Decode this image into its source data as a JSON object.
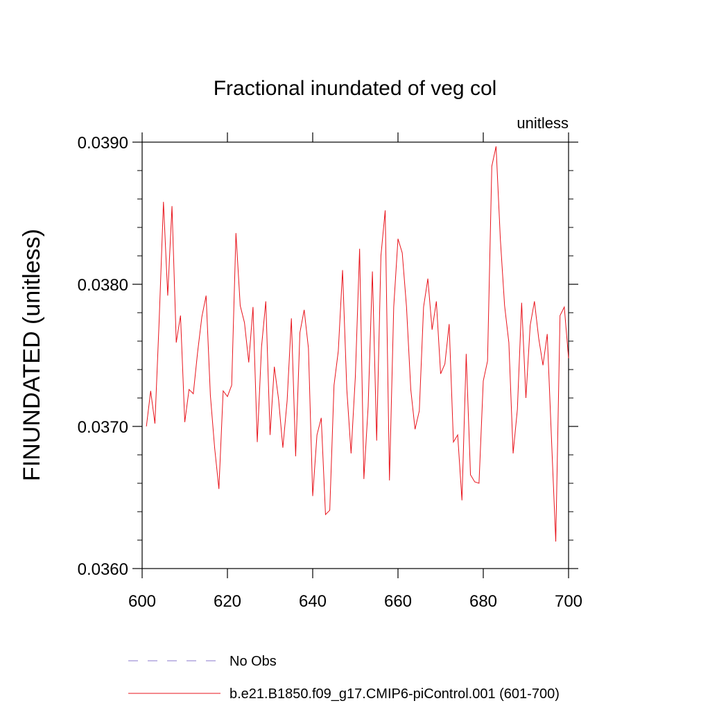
{
  "chart_data": {
    "type": "line",
    "title": "Fractional inundated of veg col",
    "units_label": "unitless",
    "xlabel": "",
    "ylabel": "FINUNDATED  (unitless)",
    "xlim": [
      600,
      700
    ],
    "ylim": [
      0.036,
      0.039
    ],
    "x_ticks": [
      600,
      620,
      640,
      660,
      680,
      700
    ],
    "x_tick_labels": [
      "600",
      "620",
      "640",
      "660",
      "680",
      "700"
    ],
    "y_ticks": [
      0.036,
      0.037,
      0.038,
      0.039
    ],
    "y_tick_labels": [
      "0.0360",
      "0.0370",
      "0.0380",
      "0.0390"
    ],
    "grid": false,
    "legend_position": "bottom",
    "series": [
      {
        "name": "No Obs",
        "color": "#8877cc",
        "dash": "dashed",
        "x": [],
        "values": []
      },
      {
        "name": "b.e21.B1850.f09_g17.CMIP6-piControl.001 (601-700)",
        "color": "#e8131b",
        "dash": "solid",
        "x": [
          601,
          602,
          603,
          604,
          605,
          606,
          607,
          608,
          609,
          610,
          611,
          612,
          613,
          614,
          615,
          616,
          617,
          618,
          619,
          620,
          621,
          622,
          623,
          624,
          625,
          626,
          627,
          628,
          629,
          630,
          631,
          632,
          633,
          634,
          635,
          636,
          637,
          638,
          639,
          640,
          641,
          642,
          643,
          644,
          645,
          646,
          647,
          648,
          649,
          650,
          651,
          652,
          653,
          654,
          655,
          656,
          657,
          658,
          659,
          660,
          661,
          662,
          663,
          664,
          665,
          666,
          667,
          668,
          669,
          670,
          671,
          672,
          673,
          674,
          675,
          676,
          677,
          678,
          679,
          680,
          681,
          682,
          683,
          684,
          685,
          686,
          687,
          688,
          689,
          690,
          691,
          692,
          693,
          694,
          695,
          696,
          697,
          698,
          699,
          700
        ],
        "values": [
          0.037,
          0.03725,
          0.03702,
          0.03775,
          0.03858,
          0.03792,
          0.03855,
          0.03759,
          0.03778,
          0.03703,
          0.03726,
          0.03723,
          0.03752,
          0.03777,
          0.03792,
          0.03722,
          0.03685,
          0.03656,
          0.03725,
          0.03721,
          0.03729,
          0.03836,
          0.03785,
          0.03773,
          0.03745,
          0.03784,
          0.03689,
          0.03756,
          0.03788,
          0.03694,
          0.03742,
          0.03719,
          0.03685,
          0.03718,
          0.03776,
          0.03679,
          0.03766,
          0.03782,
          0.03755,
          0.03651,
          0.03694,
          0.03706,
          0.03638,
          0.03641,
          0.03729,
          0.03753,
          0.0381,
          0.03726,
          0.03681,
          0.03735,
          0.03825,
          0.03663,
          0.03714,
          0.03809,
          0.0369,
          0.0382,
          0.03852,
          0.03662,
          0.03784,
          0.03832,
          0.03822,
          0.03784,
          0.03726,
          0.03698,
          0.03711,
          0.03784,
          0.03804,
          0.03768,
          0.03788,
          0.03737,
          0.03744,
          0.03772,
          0.03689,
          0.03694,
          0.03648,
          0.03751,
          0.03666,
          0.03661,
          0.0366,
          0.03732,
          0.03746,
          0.03883,
          0.03897,
          0.03832,
          0.03785,
          0.03759,
          0.03681,
          0.03712,
          0.03787,
          0.0372,
          0.03771,
          0.03788,
          0.03762,
          0.03743,
          0.03765,
          0.03691,
          0.03619,
          0.03778,
          0.03784,
          0.03748
        ]
      }
    ]
  }
}
